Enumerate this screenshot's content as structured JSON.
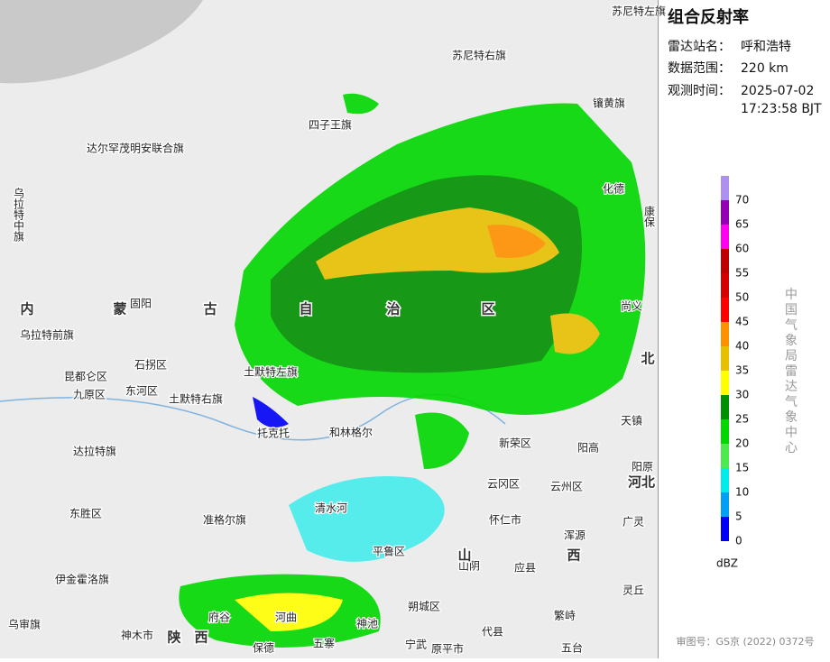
{
  "panel": {
    "title": "组合反射率",
    "station_label": "雷达站名：",
    "station": "呼和浩特",
    "range_label": "数据范围：",
    "range": "220 km",
    "time_label": "观测时间：",
    "time_date": "2025-07-02",
    "time_clock": "17:23:58 BJT"
  },
  "legend": {
    "unit": "dBZ",
    "org": "中国气象局雷达气象中心",
    "levels": [
      {
        "value": 0,
        "color": "#0000f6"
      },
      {
        "value": 5,
        "color": "#01a0f6"
      },
      {
        "value": 10,
        "color": "#00ecec"
      },
      {
        "value": 15,
        "color": "#4cea4c"
      },
      {
        "value": 20,
        "color": "#00d800"
      },
      {
        "value": 25,
        "color": "#019000"
      },
      {
        "value": 30,
        "color": "#ffff00"
      },
      {
        "value": 35,
        "color": "#e7c000"
      },
      {
        "value": 40,
        "color": "#ff9000"
      },
      {
        "value": 45,
        "color": "#ff0000"
      },
      {
        "value": 50,
        "color": "#d60000"
      },
      {
        "value": 55,
        "color": "#c00000"
      },
      {
        "value": 60,
        "color": "#ff00f0"
      },
      {
        "value": 65,
        "color": "#9600b4"
      },
      {
        "value": 70,
        "color": "#ad90f0"
      }
    ]
  },
  "footer": "审图号：GS京 (2022) 0372号",
  "map_labels": [
    "苏尼特右旗",
    "镶黄旗",
    "四子王旗",
    "达尔罕茂明安联合旗",
    "乌拉特中旗",
    "化德",
    "固阳",
    "乌拉特前旗",
    "石拐区",
    "昆都仑区",
    "九原区",
    "东河区",
    "土默特右旗",
    "土默特左旗",
    "托克托",
    "和林格尔",
    "达拉特旗",
    "新荣区",
    "阳高",
    "天镇",
    "云冈区",
    "云州区",
    "阳原",
    "清水河",
    "东胜区",
    "准格尔旗",
    "怀仁市",
    "广灵",
    "浑源",
    "平鲁区",
    "山阴",
    "应县",
    "伊金霍洛旗",
    "灵丘",
    "朔城区",
    "繁峙",
    "乌审旗",
    "神木市",
    "府谷",
    "河曲",
    "神池",
    "代县",
    "五寨",
    "宁武",
    "原平市",
    "五台",
    "保德",
    "苏尼特左旗",
    "尚义",
    "康保"
  ],
  "province_labels": [
    "内",
    "蒙",
    "古",
    "自",
    "治",
    "区",
    "陕",
    "西",
    "山",
    "西",
    "河北",
    "北"
  ]
}
